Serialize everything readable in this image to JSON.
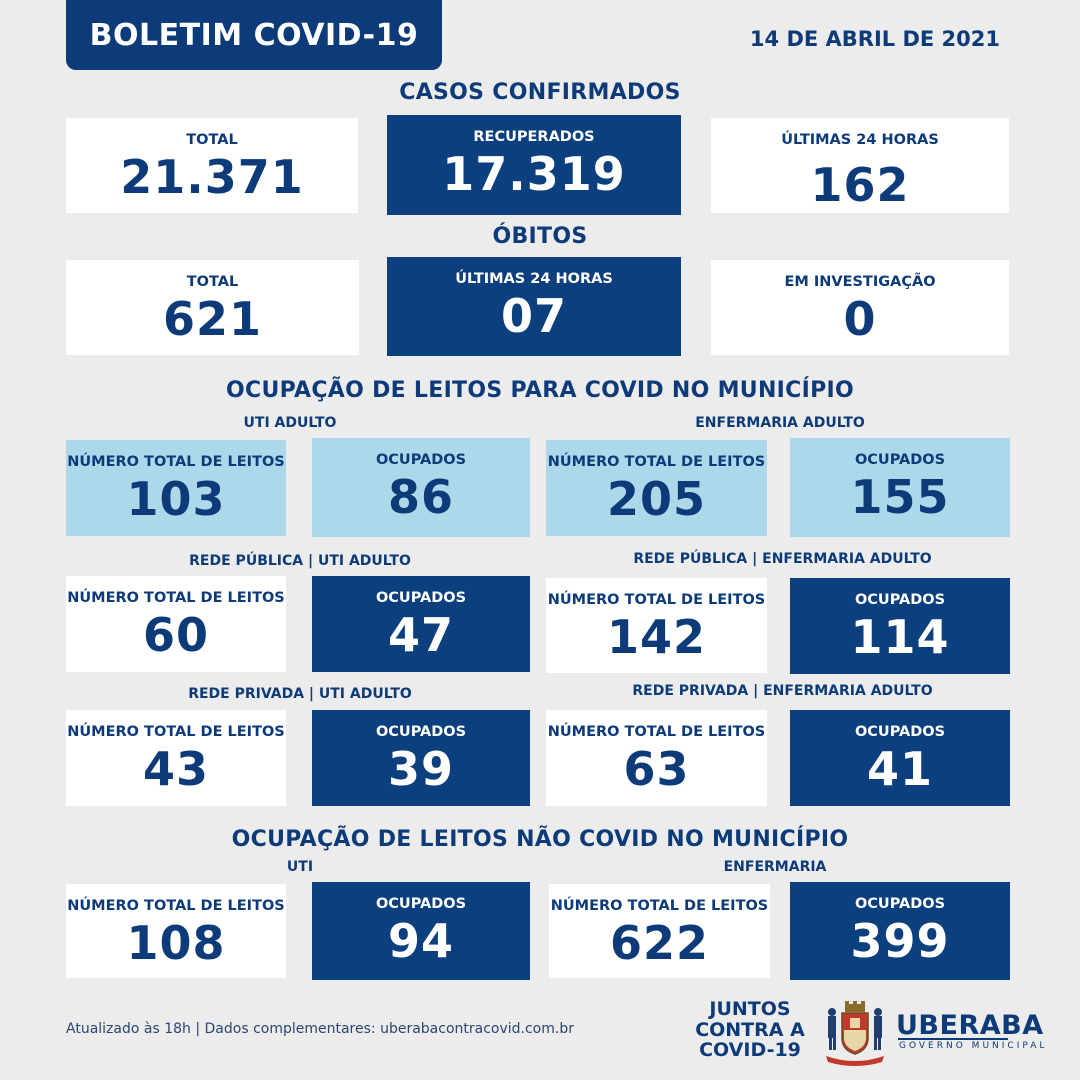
{
  "header": {
    "title": "BOLETIM COVID-19",
    "date": "14 DE ABRIL DE 2021"
  },
  "confirmed": {
    "title": "CASOS CONFIRMADOS",
    "total_label": "TOTAL",
    "total_value": "21.371",
    "recovered_label": "RECUPERADOS",
    "recovered_value": "17.319",
    "last24_label": "ÚLTIMAS 24 HORAS",
    "last24_value": "162"
  },
  "deaths": {
    "title": "ÓBITOS",
    "total_label": "TOTAL",
    "total_value": "621",
    "last24_label": "ÚLTIMAS 24 HORAS",
    "last24_value": "07",
    "investigation_label": "EM INVESTIGAÇÃO",
    "investigation_value": "0"
  },
  "covid_beds": {
    "title": "OCUPAÇÃO DE LEITOS PARA COVID NO MUNICÍPIO",
    "uti_label": "UTI ADULTO",
    "ward_label": "ENFERMARIA ADULTO",
    "uti_total_label": "NÚMERO TOTAL DE LEITOS",
    "uti_total_value": "103",
    "uti_occ_label": "OCUPADOS",
    "uti_occ_value": "86",
    "ward_total_label": "NÚMERO TOTAL DE LEITOS",
    "ward_total_value": "205",
    "ward_occ_label": "OCUPADOS",
    "ward_occ_value": "155",
    "public_uti_label": "REDE PÚBLICA | UTI ADULTO",
    "public_ward_label": "REDE PÚBLICA | ENFERMARIA ADULTO",
    "public_uti_total_label": "NÚMERO TOTAL DE LEITOS",
    "public_uti_total_value": "60",
    "public_uti_occ_label": "OCUPADOS",
    "public_uti_occ_value": "47",
    "public_ward_total_label": "NÚMERO TOTAL DE LEITOS",
    "public_ward_total_value": "142",
    "public_ward_occ_label": "OCUPADOS",
    "public_ward_occ_value": "114",
    "private_uti_label": "REDE PRIVADA | UTI ADULTO",
    "private_ward_label": "REDE PRIVADA | ENFERMARIA ADULTO",
    "private_uti_total_label": "NÚMERO TOTAL DE LEITOS",
    "private_uti_total_value": "43",
    "private_uti_occ_label": "OCUPADOS",
    "private_uti_occ_value": "39",
    "private_ward_total_label": "NÚMERO TOTAL DE LEITOS",
    "private_ward_total_value": "63",
    "private_ward_occ_label": "OCUPADOS",
    "private_ward_occ_value": "41"
  },
  "non_covid_beds": {
    "title": "OCUPAÇÃO DE LEITOS NÃO COVID NO MUNICÍPIO",
    "uti_label": "UTI",
    "ward_label": "ENFERMARIA",
    "uti_total_label": "NÚMERO TOTAL DE LEITOS",
    "uti_total_value": "108",
    "uti_occ_label": "OCUPADOS",
    "uti_occ_value": "94",
    "ward_total_label": "NÚMERO TOTAL DE LEITOS",
    "ward_total_value": "622",
    "ward_occ_label": "OCUPADOS",
    "ward_occ_value": "399"
  },
  "footer": {
    "note": "Atualizado às 18h | Dados complementares: uberabacontracovid.com.br",
    "campaign_line1": "JUNTOS",
    "campaign_line2": "CONTRA A",
    "campaign_line3": "COVID-19",
    "city": "UBERABA",
    "city_sub": "GOVERNO MUNICIPAL"
  },
  "colors": {
    "navy": "#0b3f7e",
    "light_blue": "#add8ea",
    "background": "#ececec"
  }
}
